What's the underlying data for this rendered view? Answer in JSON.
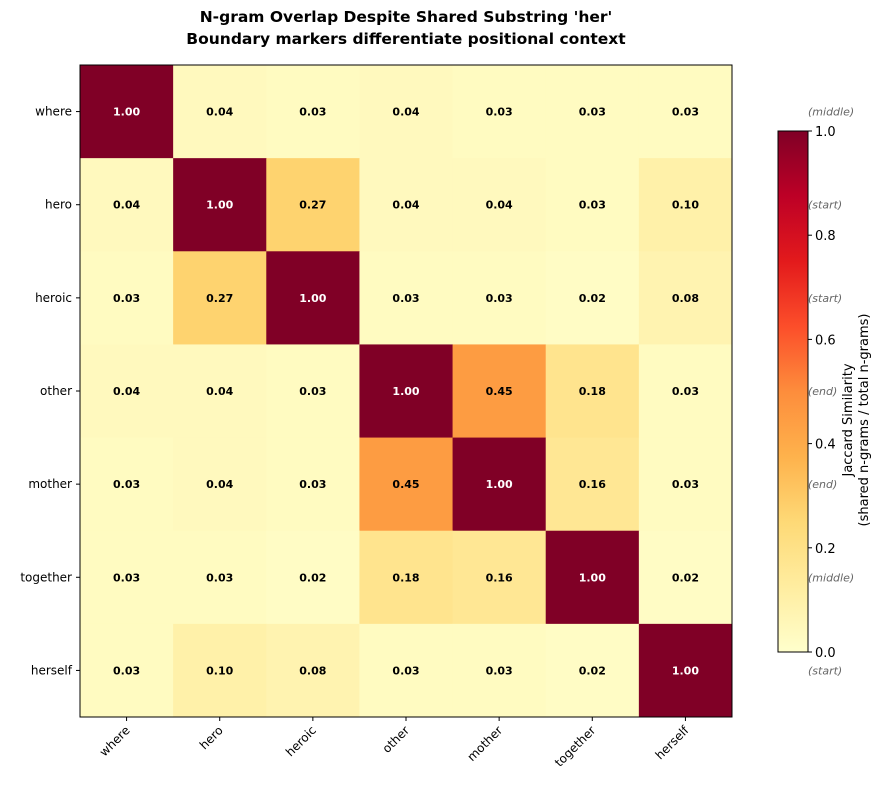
{
  "chart_data": {
    "type": "heatmap",
    "title": "N-gram Overlap Despite Shared Substring 'her'",
    "subtitle": "Boundary markers differentiate positional context",
    "x_labels": [
      "where",
      "hero",
      "heroic",
      "other",
      "mother",
      "together",
      "herself"
    ],
    "y_labels": [
      "where",
      "hero",
      "heroic",
      "other",
      "mother",
      "together",
      "herself"
    ],
    "values": [
      [
        1.0,
        0.04,
        0.03,
        0.04,
        0.03,
        0.03,
        0.03
      ],
      [
        0.04,
        1.0,
        0.27,
        0.04,
        0.04,
        0.03,
        0.1
      ],
      [
        0.03,
        0.27,
        1.0,
        0.03,
        0.03,
        0.02,
        0.08
      ],
      [
        0.04,
        0.04,
        0.03,
        1.0,
        0.45,
        0.18,
        0.03
      ],
      [
        0.03,
        0.04,
        0.03,
        0.45,
        1.0,
        0.16,
        0.03
      ],
      [
        0.03,
        0.03,
        0.02,
        0.18,
        0.16,
        1.0,
        0.02
      ],
      [
        0.03,
        0.1,
        0.08,
        0.03,
        0.03,
        0.02,
        1.0
      ]
    ],
    "value_format": "0.00",
    "row_annotations": [
      "(middle)",
      "(start)",
      "(start)",
      "(end)",
      "(end)",
      "(middle)",
      "(start)"
    ],
    "colormap": "YlOrRd",
    "colorbar": {
      "label": "Jaccard Similarity",
      "label2": "(shared n-grams / total n-grams)",
      "range": [
        0,
        1
      ],
      "ticks": [
        "0.0",
        "0.2",
        "0.4",
        "0.6",
        "0.8",
        "1.0"
      ]
    },
    "grid": false,
    "legend": "none"
  }
}
